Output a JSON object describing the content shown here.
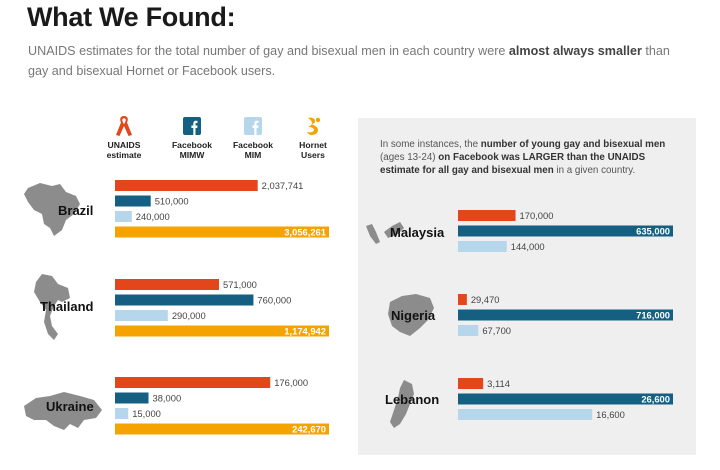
{
  "title": "What We Found:",
  "subtitle": {
    "pre": "UNAIDS estimates for the total number of gay and bisexual men in each country were ",
    "bold": "almost always smaller",
    "post": " than gay and bisexual Hornet or Facebook users."
  },
  "note": {
    "p1": "In some instances, the ",
    "b1": "number of young gay and bisexual men",
    "p2": " (ages 13-24) ",
    "b2": "on Facebook was LARGER than the UNAIDS estimate for all gay and bisexual men",
    "p3": " in a given country."
  },
  "legend": [
    {
      "label": "UNAIDS estimate",
      "line1": "UNAIDS",
      "line2": "estimate",
      "color": "#e2461a",
      "icon": "ribbon-icon"
    },
    {
      "label": "Facebook MIMW",
      "line1": "Facebook",
      "line2": "MIMW",
      "color": "#145f82",
      "icon": "facebook-icon"
    },
    {
      "label": "Facebook MIM",
      "line1": "Facebook",
      "line2": "MIM",
      "color": "#b6d6ec",
      "icon": "facebook-icon"
    },
    {
      "label": "Hornet Users",
      "line1": "Hornet",
      "line2": "Users",
      "color": "#f5a300",
      "icon": "hornet-icon"
    }
  ],
  "colors": {
    "unaids": "#e2461a",
    "fb_mimw": "#145f82",
    "fb_mim": "#b6d6ec",
    "hornet": "#f5a300",
    "map": "#8c8c8c",
    "panel": "#efefef"
  },
  "chart_data": [
    {
      "type": "bar",
      "orientation": "horizontal",
      "category": "Brazil",
      "series": [
        {
          "name": "UNAIDS estimate",
          "value": 2037741,
          "label": "2,037,741"
        },
        {
          "name": "Facebook MIMW",
          "value": 510000,
          "label": "510,000"
        },
        {
          "name": "Facebook MIM",
          "value": 240000,
          "label": "240,000"
        },
        {
          "name": "Hornet Users",
          "value": 3056261,
          "label": "3,056,261"
        }
      ]
    },
    {
      "type": "bar",
      "orientation": "horizontal",
      "category": "Thailand",
      "series": [
        {
          "name": "UNAIDS estimate",
          "value": 571000,
          "label": "571,000"
        },
        {
          "name": "Facebook MIMW",
          "value": 760000,
          "label": "760,000"
        },
        {
          "name": "Facebook MIM",
          "value": 290000,
          "label": "290,000"
        },
        {
          "name": "Hornet Users",
          "value": 1174942,
          "label": "1,174,942"
        }
      ]
    },
    {
      "type": "bar",
      "orientation": "horizontal",
      "category": "Ukraine",
      "series": [
        {
          "name": "UNAIDS estimate",
          "value": 176000,
          "label": "176,000"
        },
        {
          "name": "Facebook MIMW",
          "value": 38000,
          "label": "38,000"
        },
        {
          "name": "Facebook MIM",
          "value": 15000,
          "label": "15,000"
        },
        {
          "name": "Hornet Users",
          "value": 242670,
          "label": "242,670"
        }
      ]
    },
    {
      "type": "bar",
      "orientation": "horizontal",
      "category": "Malaysia",
      "series": [
        {
          "name": "UNAIDS estimate",
          "value": 170000,
          "label": "170,000"
        },
        {
          "name": "Facebook MIMW",
          "value": 635000,
          "label": "635,000"
        },
        {
          "name": "Facebook MIM",
          "value": 144000,
          "label": "144,000"
        }
      ]
    },
    {
      "type": "bar",
      "orientation": "horizontal",
      "category": "Nigeria",
      "series": [
        {
          "name": "UNAIDS estimate",
          "value": 29470,
          "label": "29,470"
        },
        {
          "name": "Facebook MIMW",
          "value": 716000,
          "label": "716,000"
        },
        {
          "name": "Facebook MIM",
          "value": 67700,
          "label": "67,700"
        }
      ]
    },
    {
      "type": "bar",
      "orientation": "horizontal",
      "category": "Lebanon",
      "series": [
        {
          "name": "UNAIDS estimate",
          "value": 3114,
          "label": "3,114"
        },
        {
          "name": "Facebook MIMW",
          "value": 26600,
          "label": "26,600"
        },
        {
          "name": "Facebook MIM",
          "value": 16600,
          "label": "16,600"
        }
      ]
    }
  ]
}
